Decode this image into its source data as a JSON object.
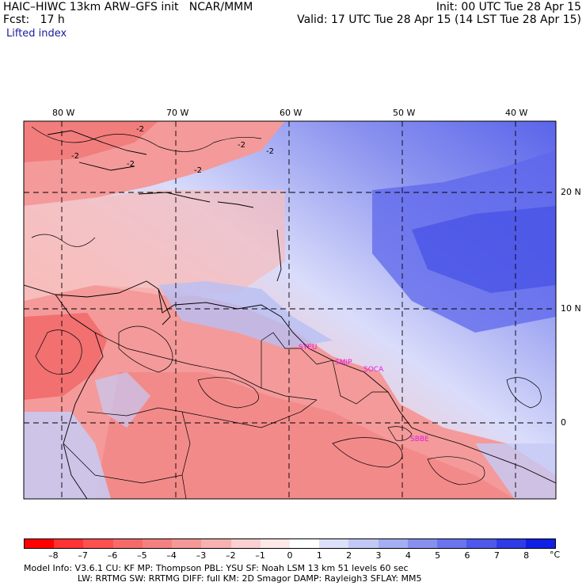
{
  "header": {
    "left1": "HAIC–HIWC 13km ARW–GFS init   NCAR/MMM",
    "left2": "Fcst:   17 h",
    "field": "Lifted index",
    "init": "Init: 00 UTC Tue 28 Apr 15",
    "valid": "Valid: 17 UTC Tue 28 Apr 15 (14 LST Tue 28 Apr 15)"
  },
  "map": {
    "lon_labels": [
      "80 W",
      "70 W",
      "60 W",
      "50 W",
      "40 W"
    ],
    "lat_labels": [
      "20 N",
      "10 N",
      "0"
    ],
    "station_labels": [
      "SYEU",
      "SMJP",
      "SOCA",
      "SBBE"
    ],
    "contour_labels": [
      "-2",
      "-2",
      "-2",
      "-2",
      "-2",
      "-2"
    ],
    "station_color": "#e01ee0"
  },
  "colorbar": {
    "ticks": [
      "–8",
      "–7",
      "–6",
      "–5",
      "–4",
      "–3",
      "–2",
      "–1",
      "0",
      "1",
      "2",
      "3",
      "4",
      "5",
      "6",
      "7",
      "8"
    ],
    "unit": "°C",
    "colors": [
      "#ff0000",
      "#ff3333",
      "#ff5050",
      "#f86a6a",
      "#f58080",
      "#f59898",
      "#f7b1b1",
      "#fad0d0",
      "#fde8e8",
      "#ffffff",
      "#dde0fb",
      "#c2c8f6",
      "#a4aef2",
      "#8890ef",
      "#6a74ec",
      "#4e58ea",
      "#2e3be6",
      "#0f1fe4"
    ]
  },
  "footer": {
    "line1": "Model Info: V3.6.1    CU: KF       MP: Thompson     PBL: YSU       SF: Noah LSM     13 km    51 levels   60 sec",
    "line2": "LW: RRTMG    SW: RRTMG   DIFF: full    KM: 2D Smagor DAMP: Rayleigh3   SFLAY: MM5"
  }
}
